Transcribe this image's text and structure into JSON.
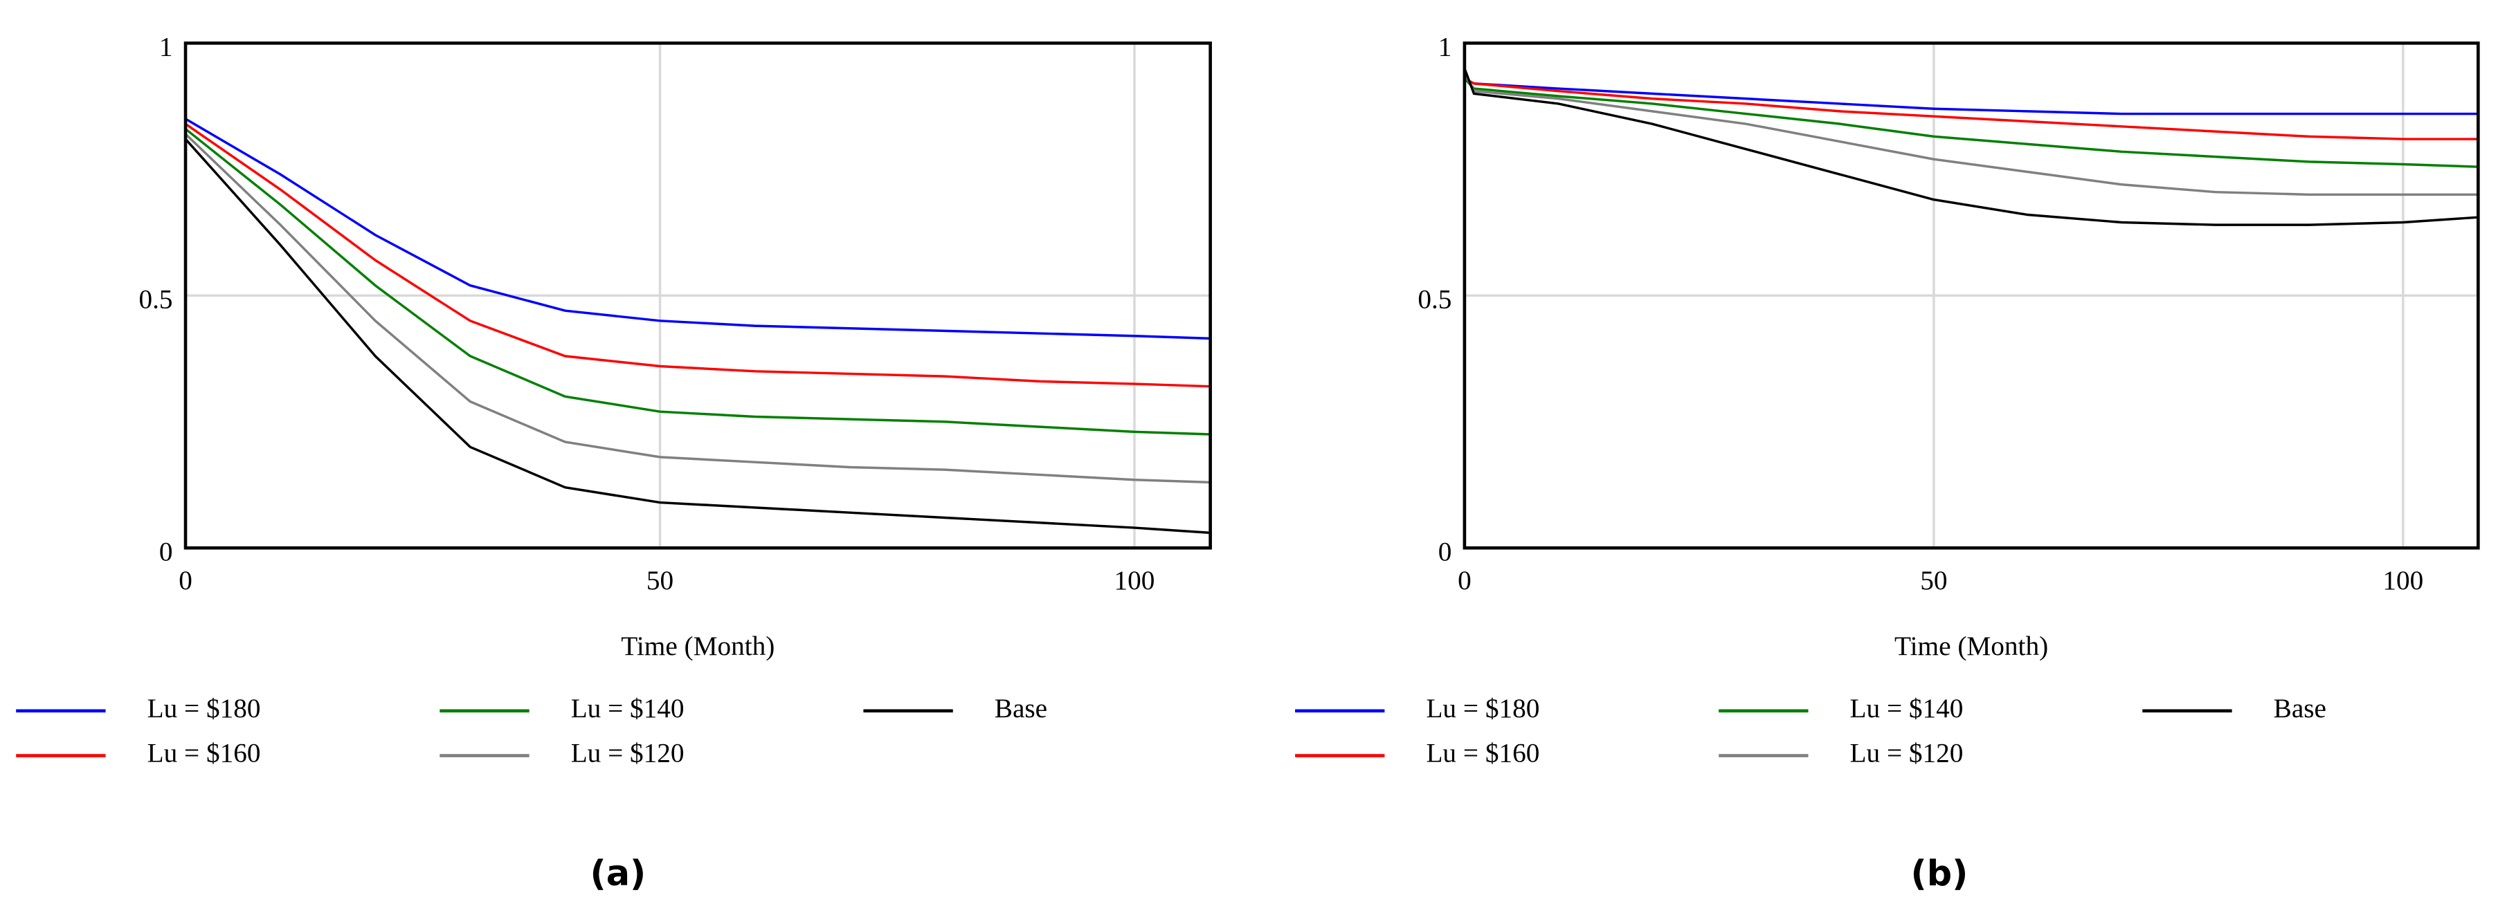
{
  "chart_data": [
    {
      "type": "line",
      "caption": "(a)",
      "xlabel": "Time (Month)",
      "x": [
        0,
        10,
        20,
        30,
        40,
        50,
        60,
        70,
        80,
        90,
        100,
        108
      ],
      "xlim": [
        0,
        108
      ],
      "ylim": [
        0,
        1
      ],
      "xticks": [
        0,
        50,
        100
      ],
      "yticks": [
        0,
        0.5,
        1
      ],
      "grid": true,
      "series": [
        {
          "name": "Lu = $180",
          "color": "#0000ff",
          "values": [
            0.85,
            0.74,
            0.62,
            0.52,
            0.47,
            0.45,
            0.44,
            0.435,
            0.43,
            0.425,
            0.42,
            0.415
          ]
        },
        {
          "name": "Lu = $160",
          "color": "#ff0000",
          "values": [
            0.84,
            0.71,
            0.57,
            0.45,
            0.38,
            0.36,
            0.35,
            0.345,
            0.34,
            0.33,
            0.325,
            0.32
          ]
        },
        {
          "name": "Lu = $140",
          "color": "#008000",
          "values": [
            0.83,
            0.68,
            0.52,
            0.38,
            0.3,
            0.27,
            0.26,
            0.255,
            0.25,
            0.24,
            0.23,
            0.225
          ]
        },
        {
          "name": "Lu = $120",
          "color": "#808080",
          "values": [
            0.82,
            0.64,
            0.45,
            0.29,
            0.21,
            0.18,
            0.17,
            0.16,
            0.155,
            0.145,
            0.135,
            0.13
          ]
        },
        {
          "name": "Base",
          "color": "#000000",
          "values": [
            0.81,
            0.6,
            0.38,
            0.2,
            0.12,
            0.09,
            0.08,
            0.07,
            0.06,
            0.05,
            0.04,
            0.03
          ]
        }
      ]
    },
    {
      "type": "line",
      "caption": "(b)",
      "xlabel": "Time (Month)",
      "x": [
        0,
        1,
        10,
        20,
        30,
        40,
        50,
        60,
        70,
        80,
        90,
        100,
        108
      ],
      "xlim": [
        0,
        108
      ],
      "ylim": [
        0,
        1
      ],
      "xticks": [
        0,
        50,
        100
      ],
      "yticks": [
        0,
        0.5,
        1
      ],
      "grid": true,
      "series": [
        {
          "name": "Lu = $180",
          "color": "#0000ff",
          "values": [
            0.93,
            0.92,
            0.91,
            0.9,
            0.89,
            0.88,
            0.87,
            0.865,
            0.86,
            0.86,
            0.86,
            0.86,
            0.86
          ]
        },
        {
          "name": "Lu = $160",
          "color": "#ff0000",
          "values": [
            0.93,
            0.92,
            0.905,
            0.89,
            0.88,
            0.865,
            0.855,
            0.845,
            0.835,
            0.825,
            0.815,
            0.81,
            0.81
          ]
        },
        {
          "name": "Lu = $140",
          "color": "#008000",
          "values": [
            0.93,
            0.91,
            0.895,
            0.88,
            0.86,
            0.84,
            0.815,
            0.8,
            0.785,
            0.775,
            0.765,
            0.76,
            0.755
          ]
        },
        {
          "name": "Lu = $120",
          "color": "#808080",
          "values": [
            0.94,
            0.905,
            0.89,
            0.865,
            0.84,
            0.805,
            0.77,
            0.745,
            0.72,
            0.705,
            0.7,
            0.7,
            0.7
          ]
        },
        {
          "name": "Base",
          "color": "#000000",
          "values": [
            0.95,
            0.9,
            0.88,
            0.84,
            0.79,
            0.74,
            0.69,
            0.66,
            0.645,
            0.64,
            0.64,
            0.645,
            0.655
          ]
        }
      ]
    }
  ]
}
